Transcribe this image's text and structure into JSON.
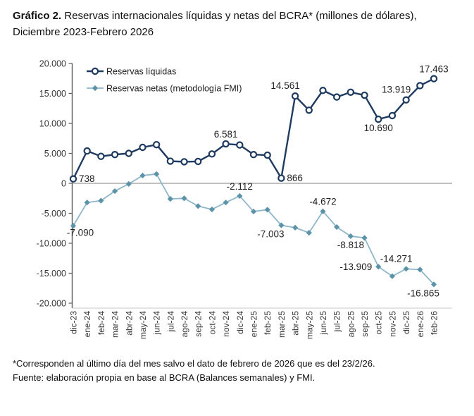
{
  "header": {
    "title_bold": "Gráfico 2.",
    "title_rest": " Reservas internacionales líquidas y netas del BCRA* (millones de dólares), Diciembre 2023-Febrero 2026"
  },
  "chart_data": {
    "type": "line",
    "title": "Reservas internacionales líquidas y netas del BCRA (millones de dólares), Diciembre 2023-Febrero 2026",
    "categories": [
      "dic-23",
      "ene-24",
      "feb-24",
      "mar-24",
      "abr-24",
      "may-24",
      "jun-24",
      "jul-24",
      "ago-24",
      "sep-24",
      "oct-24",
      "nov-24",
      "dic-24",
      "ene-25",
      "feb-25",
      "mar-25",
      "abr-25",
      "may-25",
      "jun-25",
      "jul-25",
      "ago-25",
      "sep-25",
      "oct-25",
      "nov-25",
      "dic-25",
      "ene-26",
      "feb-26"
    ],
    "y_axis": {
      "min": -20000,
      "max": 20000,
      "tick_step": 5000,
      "tick_labels": [
        "20.000",
        "15.000",
        "10.000",
        "5.000",
        "0",
        "-5.000",
        "-10.000",
        "-15.000",
        "-20.000"
      ]
    },
    "grid": "zero-line-only",
    "legend_position": "top-left-inside",
    "series": [
      {
        "name": "Reservas líquidas",
        "color": "#1F3A5F",
        "marker": "open-circle",
        "values": [
          738,
          5400,
          4500,
          4800,
          5000,
          6000,
          6450,
          3700,
          3600,
          3650,
          4900,
          6581,
          6400,
          4800,
          4700,
          866,
          14561,
          12200,
          15500,
          14400,
          15200,
          14700,
          10690,
          11300,
          13919,
          16300,
          17463
        ],
        "point_labels": [
          {
            "index": 0,
            "text": "738",
            "placement": "right"
          },
          {
            "index": 11,
            "text": "6.581",
            "placement": "above"
          },
          {
            "index": 15,
            "text": "866",
            "placement": "right"
          },
          {
            "index": 16,
            "text": "14.561",
            "placement": "above-left"
          },
          {
            "index": 22,
            "text": "10.690",
            "placement": "below"
          },
          {
            "index": 24,
            "text": "13.919",
            "placement": "above-left"
          },
          {
            "index": 26,
            "text": "17.463",
            "placement": "above"
          }
        ]
      },
      {
        "name": "Reservas netas (metodología FMI)",
        "color": "#8FB6C9",
        "marker": "filled-diamond",
        "marker_color": "#5D93A9",
        "values": [
          -7090,
          -3200,
          -2900,
          -1300,
          -100,
          1300,
          1550,
          -2600,
          -2500,
          -3800,
          -4350,
          -3200,
          -2112,
          -4700,
          -4400,
          -7003,
          -7400,
          -8250,
          -4672,
          -7300,
          -8818,
          -9100,
          -13909,
          -15500,
          -14271,
          -14400,
          -16865
        ],
        "point_labels": [
          {
            "index": 0,
            "text": "-7.090",
            "placement": "below-right"
          },
          {
            "index": 12,
            "text": "-2.112",
            "placement": "above"
          },
          {
            "index": 15,
            "text": "-7.003",
            "placement": "below-left"
          },
          {
            "index": 18,
            "text": "-4.672",
            "placement": "above"
          },
          {
            "index": 20,
            "text": "-8.818",
            "placement": "below"
          },
          {
            "index": 22,
            "text": "-13.909",
            "placement": "left"
          },
          {
            "index": 24,
            "text": "-14.271",
            "placement": "above-left"
          },
          {
            "index": 26,
            "text": "-16.865",
            "placement": "below-left"
          }
        ]
      }
    ]
  },
  "footnote": {
    "line1": "*Corresponden al último día del mes salvo el dato de febrero de 2026 que es del 23/2/26.",
    "line2": "Fuente: elaboración propia en base al BCRA (Balances semanales) y FMI."
  }
}
